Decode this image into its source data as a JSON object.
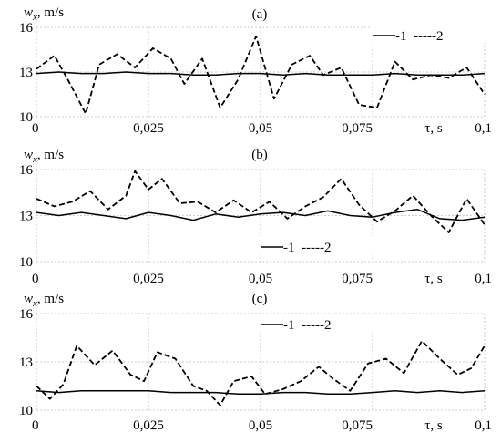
{
  "chart_data": [
    {
      "type": "line",
      "panel": "(a)",
      "ylabel_var": "w",
      "ylabel_sub": "x",
      "ylabel_unit": ", m/s",
      "xlabel": "τ, s",
      "xlim": [
        0,
        0.1
      ],
      "ylim": [
        10,
        16
      ],
      "xticks": [
        "0",
        "0,025",
        "0,05",
        "0,075",
        "0,1"
      ],
      "yticks": [
        "10",
        "13",
        "16"
      ],
      "grid": true,
      "legend_placement": "top-right",
      "series": [
        {
          "name": "1",
          "style": "solid",
          "x": [
            0,
            0.005,
            0.01,
            0.015,
            0.02,
            0.025,
            0.03,
            0.035,
            0.04,
            0.045,
            0.05,
            0.055,
            0.06,
            0.065,
            0.07,
            0.075,
            0.08,
            0.085,
            0.09,
            0.095,
            0.1
          ],
          "y": [
            12.9,
            13.0,
            12.9,
            12.9,
            13.0,
            12.9,
            12.9,
            12.8,
            12.8,
            12.9,
            12.9,
            12.8,
            12.9,
            12.8,
            12.8,
            12.8,
            12.9,
            12.8,
            12.8,
            12.8,
            12.9
          ]
        },
        {
          "name": "2",
          "style": "dashed",
          "x": [
            0,
            0.004,
            0.007,
            0.011,
            0.014,
            0.018,
            0.022,
            0.026,
            0.03,
            0.033,
            0.037,
            0.041,
            0.045,
            0.049,
            0.053,
            0.057,
            0.061,
            0.064,
            0.068,
            0.072,
            0.076,
            0.08,
            0.084,
            0.088,
            0.092,
            0.096,
            0.1
          ],
          "y": [
            13.2,
            14.1,
            12.5,
            10.2,
            13.5,
            14.2,
            13.3,
            14.6,
            13.9,
            12.2,
            13.9,
            10.6,
            12.5,
            15.4,
            11.2,
            13.5,
            14.1,
            12.8,
            13.3,
            10.8,
            10.6,
            13.7,
            12.5,
            12.8,
            12.6,
            13.3,
            11.5
          ]
        }
      ],
      "legend": [
        "-1",
        "-----2"
      ]
    },
    {
      "type": "line",
      "panel": "(b)",
      "ylabel_var": "w",
      "ylabel_sub": "x",
      "ylabel_unit": ", m/s",
      "xlabel": "τ, s",
      "xlim": [
        0,
        0.1
      ],
      "ylim": [
        10,
        16
      ],
      "xticks": [
        "0",
        "0,025",
        "0,05",
        "0,075",
        "0,1"
      ],
      "yticks": [
        "10",
        "13",
        "16"
      ],
      "grid": true,
      "legend_placement": "center-bottom",
      "series": [
        {
          "name": "1",
          "style": "solid",
          "x": [
            0,
            0.005,
            0.01,
            0.015,
            0.02,
            0.025,
            0.03,
            0.035,
            0.04,
            0.045,
            0.05,
            0.055,
            0.06,
            0.065,
            0.07,
            0.075,
            0.08,
            0.085,
            0.09,
            0.095,
            0.1
          ],
          "y": [
            13.2,
            13.0,
            13.2,
            13.0,
            12.8,
            13.2,
            13.0,
            12.7,
            13.1,
            12.9,
            13.1,
            13.2,
            13.0,
            13.3,
            13.0,
            12.9,
            13.2,
            13.4,
            12.8,
            12.7,
            12.9
          ]
        },
        {
          "name": "2",
          "style": "dashed",
          "x": [
            0,
            0.004,
            0.008,
            0.012,
            0.016,
            0.02,
            0.022,
            0.025,
            0.028,
            0.032,
            0.036,
            0.04,
            0.044,
            0.048,
            0.052,
            0.056,
            0.06,
            0.064,
            0.068,
            0.072,
            0.076,
            0.08,
            0.084,
            0.088,
            0.092,
            0.096,
            0.1
          ],
          "y": [
            14.1,
            13.6,
            13.9,
            14.6,
            13.4,
            14.3,
            15.9,
            14.7,
            15.4,
            13.8,
            13.9,
            13.2,
            14.0,
            13.2,
            13.9,
            12.8,
            13.6,
            14.2,
            15.4,
            13.7,
            12.6,
            13.3,
            14.3,
            13.0,
            11.9,
            14.1,
            12.4
          ]
        }
      ],
      "legend": [
        "-1",
        "-----2"
      ]
    },
    {
      "type": "line",
      "panel": "(c)",
      "ylabel_var": "w",
      "ylabel_sub": "x",
      "ylabel_unit": ", m/s",
      "xlabel": "τ, s",
      "xlim": [
        0,
        0.1
      ],
      "ylim": [
        10,
        16
      ],
      "xticks": [
        "0",
        "0,025",
        "0,05",
        "0,075",
        "0,1"
      ],
      "yticks": [
        "10",
        "13",
        "16"
      ],
      "grid": true,
      "legend_placement": "top-center",
      "series": [
        {
          "name": "1",
          "style": "solid",
          "x": [
            0,
            0.005,
            0.01,
            0.015,
            0.02,
            0.025,
            0.03,
            0.035,
            0.04,
            0.045,
            0.05,
            0.055,
            0.06,
            0.065,
            0.07,
            0.075,
            0.08,
            0.085,
            0.09,
            0.095,
            0.1
          ],
          "y": [
            11.2,
            11.1,
            11.2,
            11.2,
            11.2,
            11.2,
            11.1,
            11.1,
            11.1,
            11.0,
            11.0,
            11.1,
            11.1,
            11.0,
            11.0,
            11.1,
            11.2,
            11.1,
            11.2,
            11.1,
            11.2
          ]
        },
        {
          "name": "2",
          "style": "dashed",
          "x": [
            0,
            0.003,
            0.006,
            0.009,
            0.013,
            0.017,
            0.021,
            0.024,
            0.027,
            0.031,
            0.035,
            0.038,
            0.041,
            0.044,
            0.048,
            0.051,
            0.055,
            0.059,
            0.063,
            0.066,
            0.07,
            0.074,
            0.078,
            0.082,
            0.086,
            0.09,
            0.094,
            0.097,
            0.1
          ],
          "y": [
            11.5,
            10.7,
            11.6,
            14.0,
            12.8,
            13.7,
            12.2,
            11.8,
            13.6,
            13.2,
            11.5,
            11.2,
            10.3,
            11.8,
            12.1,
            11.0,
            11.3,
            11.8,
            12.7,
            12.0,
            11.2,
            12.9,
            13.2,
            12.3,
            14.3,
            13.2,
            12.2,
            12.6,
            14.0
          ]
        }
      ],
      "legend": [
        "-1",
        "-----2"
      ]
    }
  ]
}
